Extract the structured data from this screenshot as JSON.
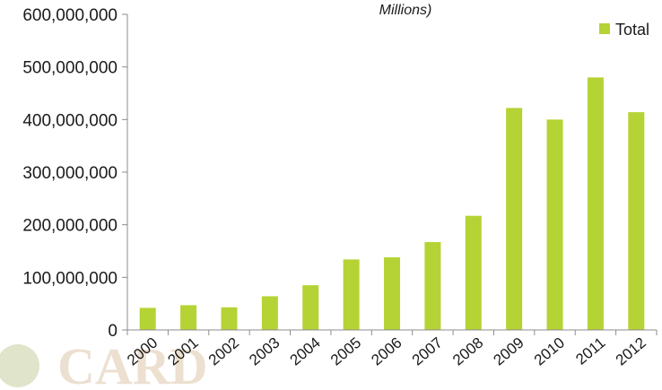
{
  "chart_data": {
    "type": "bar",
    "title": "Millions)",
    "categories": [
      "2000",
      "2001",
      "2002",
      "2003",
      "2004",
      "2005",
      "2006",
      "2007",
      "2008",
      "2009",
      "2010",
      "2011",
      "2012"
    ],
    "series": [
      {
        "name": "Total",
        "values": [
          42000000,
          47000000,
          43000000,
          64000000,
          85000000,
          134000000,
          138000000,
          167000000,
          217000000,
          422000000,
          400000000,
          480000000,
          414000000
        ]
      }
    ],
    "ylim": [
      0,
      600000000
    ],
    "yticks": [
      "0",
      "100,000,000",
      "200,000,000",
      "300,000,000",
      "400,000,000",
      "500,000,000",
      "600,000,000"
    ],
    "legend_position": "top-right",
    "grid": false,
    "bar_color": "#b5d334",
    "axis_color": "#8c8c8c"
  },
  "watermark": {
    "text": "CARD",
    "color": "#c9a77c"
  }
}
